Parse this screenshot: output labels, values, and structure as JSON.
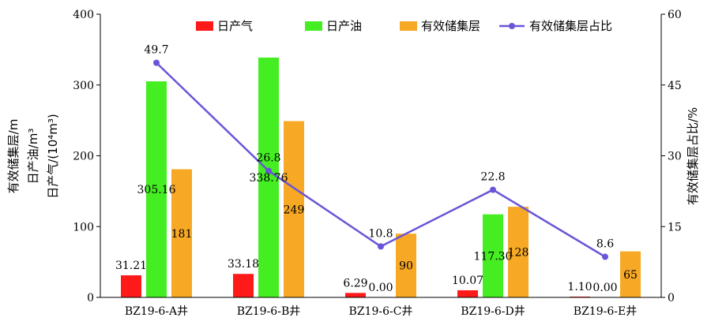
{
  "chart_data": {
    "type": "bar",
    "categories": [
      "BZ19-6-A井",
      "BZ19-6-B井",
      "BZ19-6-C井",
      "BZ19-6-D井",
      "BZ19-6-E井"
    ],
    "series": [
      {
        "name": "日产气",
        "type": "bar",
        "axis": "left",
        "color": "#ff1a1a",
        "values": [
          31.21,
          33.18,
          6.29,
          10.07,
          1.1
        ],
        "labels": [
          "31.21",
          "33.18",
          "6.29",
          "10.07",
          "1.10"
        ]
      },
      {
        "name": "日产油",
        "type": "bar",
        "axis": "left",
        "color": "#44ee22",
        "values": [
          305.16,
          338.76,
          0.0,
          117.3,
          0.0
        ],
        "labels": [
          "305.16",
          "338.76",
          "0.00",
          "117.30",
          "0.00"
        ]
      },
      {
        "name": "有效储集层",
        "type": "bar",
        "axis": "left",
        "color": "#f7a824",
        "values": [
          181,
          249,
          90,
          128,
          65
        ],
        "labels": [
          "181",
          "249",
          "90",
          "128",
          "65"
        ]
      },
      {
        "name": "有效储集层占比",
        "type": "line",
        "axis": "right",
        "color": "#6a55d8",
        "values": [
          49.7,
          26.8,
          10.8,
          22.8,
          8.6
        ],
        "labels": [
          "49.7",
          "26.8",
          "10.8",
          "22.8",
          "8.6"
        ]
      }
    ],
    "y_left": {
      "label_lines": [
        "有效储集层/m",
        "日产油/m³",
        "日产气/(10⁴m³)"
      ],
      "ylim": [
        0,
        400
      ],
      "ticks": [
        "0",
        "100",
        "200",
        "300",
        "400"
      ]
    },
    "y_right": {
      "label": "有效储集层占比/%",
      "ylim": [
        0,
        60
      ],
      "ticks": [
        "0",
        "15",
        "30",
        "45",
        "60"
      ]
    },
    "grid": false,
    "legend_position": "top"
  }
}
